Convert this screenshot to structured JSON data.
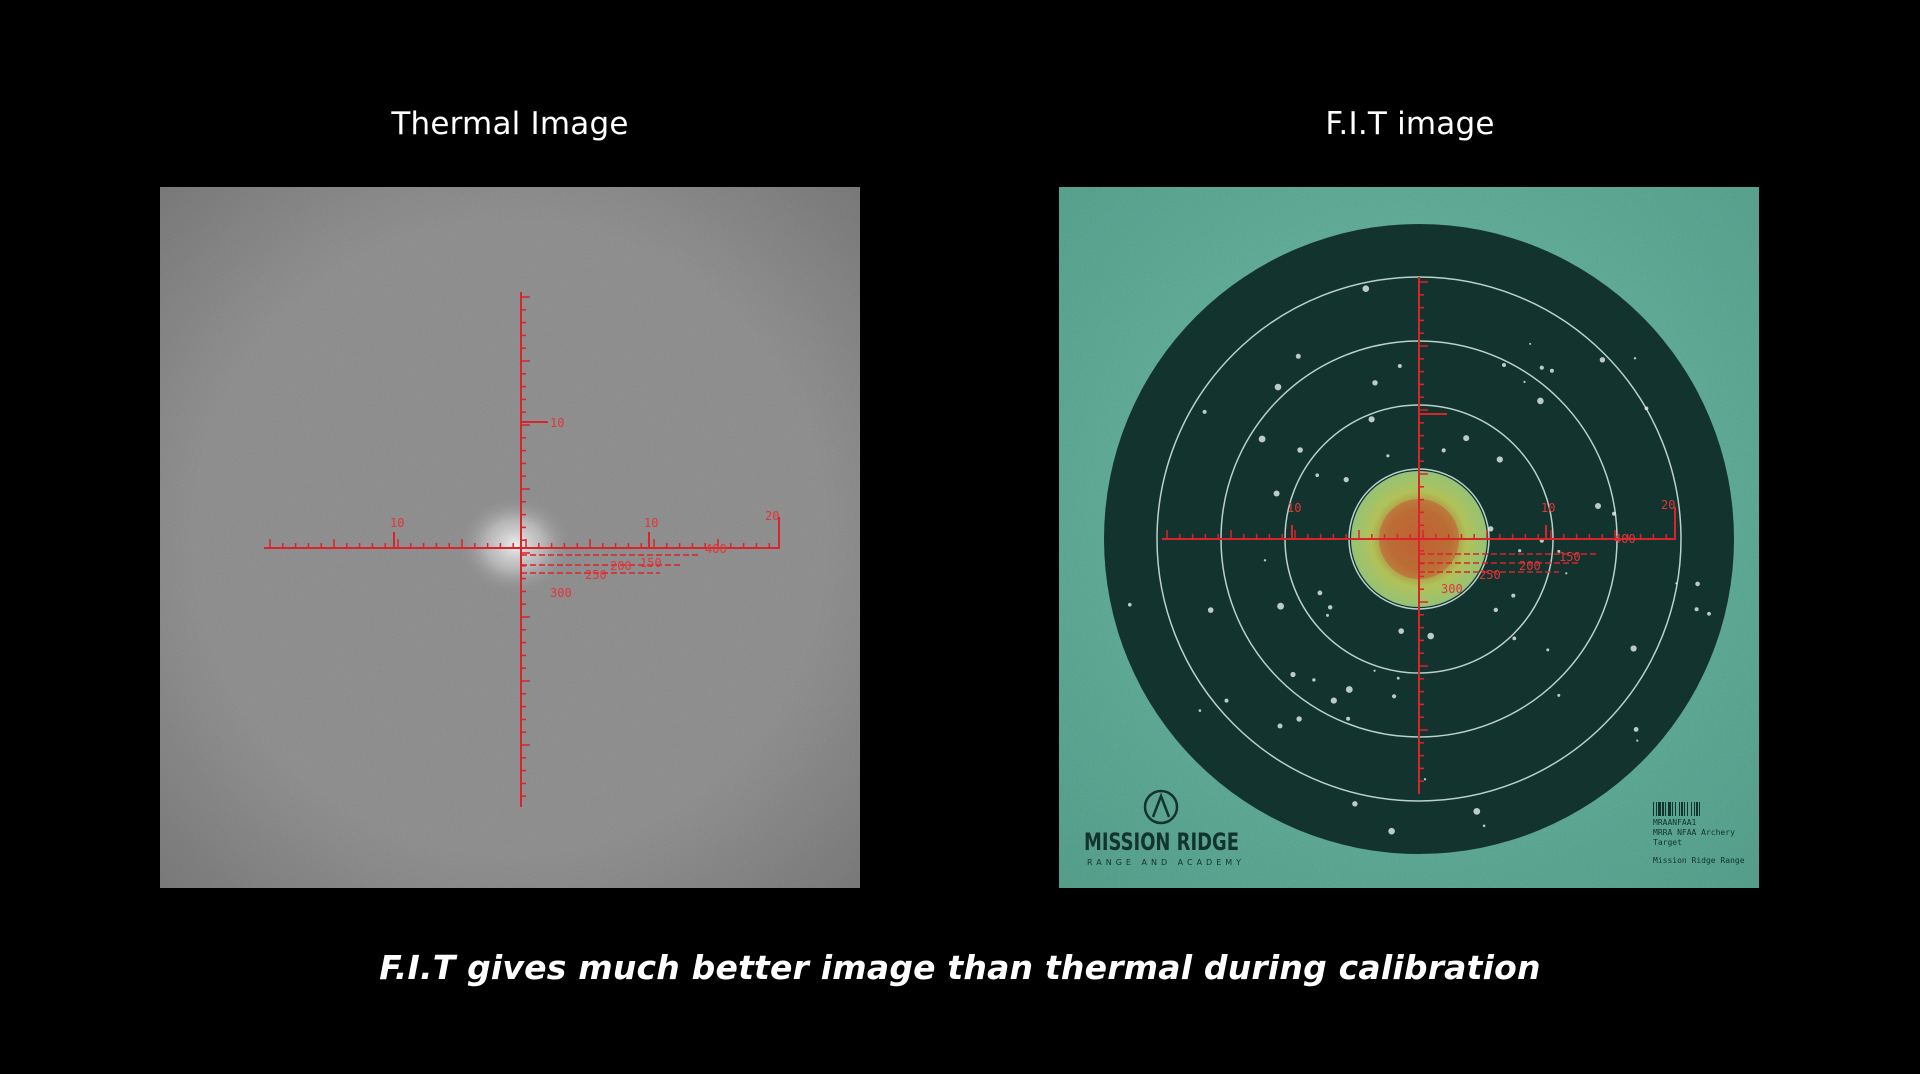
{
  "slide": {
    "left_title": "Thermal Image",
    "right_title": "F.I.T image",
    "caption": "F.I.T gives much better image than thermal during calibration"
  },
  "colors": {
    "background": "#000000",
    "reticle": "#d8242b",
    "thermal_gray": "#8a8a8a",
    "target_field": "#5aa592",
    "target_dark": "#13332f",
    "target_ring": "#d9ece6"
  },
  "thermal_reticle": {
    "upper_mark": "10",
    "horizontal_marks": [
      "10",
      "10",
      "20"
    ],
    "range_marks": [
      "150",
      "200",
      "250",
      "300",
      "400"
    ]
  },
  "fit_reticle": {
    "horizontal_marks": [
      "10",
      "10",
      "20"
    ],
    "range_marks": [
      "150",
      "200",
      "250",
      "300",
      "400"
    ]
  },
  "target_branding": {
    "brand_name": "MISSION RIDGE",
    "brand_tagline": "RANGE AND ACADEMY",
    "code": "MRAANFAA1",
    "target_line1": "MRRA NFAA Archery",
    "target_line2": "Target",
    "footer": "Mission Ridge Range"
  }
}
